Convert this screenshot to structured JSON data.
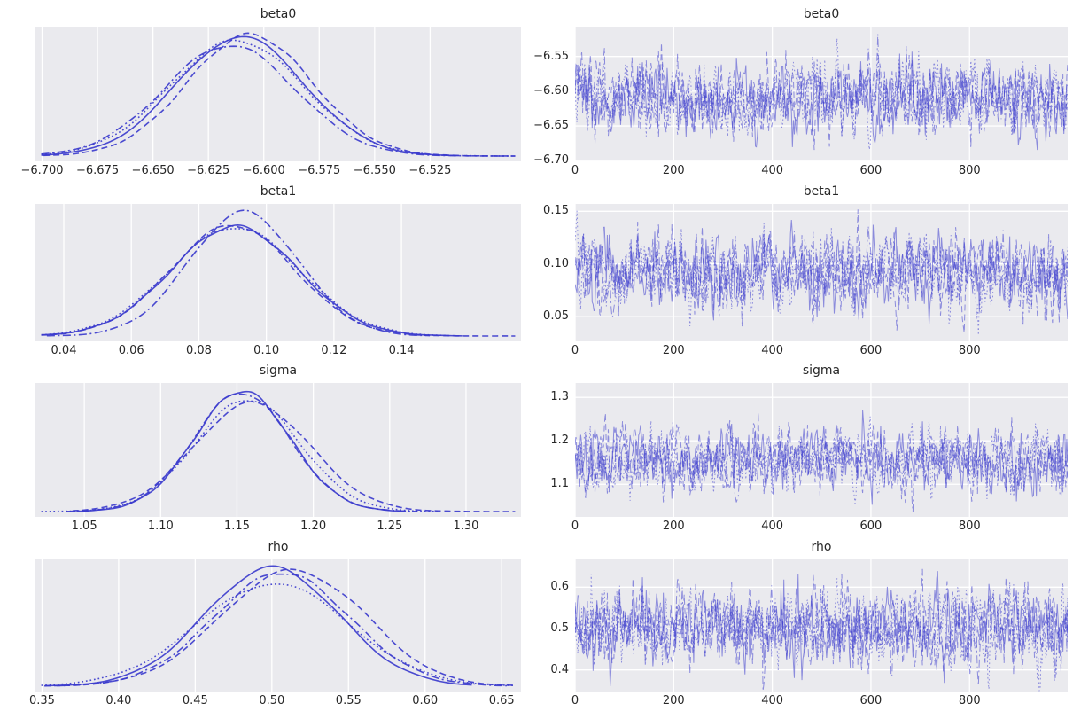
{
  "figure": {
    "background": "#ffffff",
    "axes_background": "#eaeaee",
    "grid_color": "#ffffff",
    "text_color": "#262626",
    "kde_line_color": "#3c3ccd",
    "trace_line_color": "#3c3ccd",
    "trace_opacity": 0.55,
    "chain_count": 4,
    "chain_linestyles": [
      "solid",
      "dashed",
      "dashdot",
      "dotted"
    ],
    "layout": "4 rows (beta0, beta1, sigma, rho) x 2 cols (posterior KDE, sample trace)"
  },
  "chart_data": [
    {
      "id": "beta0-kde",
      "title": "beta0",
      "type": "line",
      "subtype": "kde",
      "xlim": [
        -6.703,
        -6.484
      ],
      "xticks": [
        -6.7,
        -6.675,
        -6.65,
        -6.625,
        -6.6,
        -6.575,
        -6.55,
        -6.525
      ],
      "xtick_labels": [
        "−6.700",
        "−6.675",
        "−6.650",
        "−6.625",
        "−6.600",
        "−6.575",
        "−6.550",
        "−6.525"
      ],
      "series": [
        {
          "name": "chain-0",
          "style": "solid",
          "mu": -6.6105,
          "sd": 0.0288,
          "h": 1.0,
          "ext": [
            3.4,
            3.4
          ]
        },
        {
          "name": "chain-1",
          "style": "dashed",
          "mu": -6.6063,
          "sd": 0.0282,
          "h": 1.02,
          "ext": [
            3.3,
            5.2
          ]
        },
        {
          "name": "chain-2",
          "style": "dashdot",
          "mu": -6.6155,
          "sd": 0.0296,
          "h": 0.93,
          "ext": [
            4.1,
            4.6
          ]
        },
        {
          "name": "chain-3",
          "style": "dotted",
          "mu": -6.6122,
          "sd": 0.03,
          "h": 0.97,
          "ext": [
            3.7,
            4.4
          ]
        }
      ]
    },
    {
      "id": "beta0-trace",
      "title": "beta0",
      "type": "line",
      "subtype": "trace",
      "xlim": [
        0,
        999
      ],
      "xticks": [
        0,
        200,
        400,
        600,
        800
      ],
      "xtick_labels": [
        "0",
        "200",
        "400",
        "600",
        "800"
      ],
      "ylim": [
        -6.701,
        -6.507
      ],
      "yticks": [
        -6.55,
        -6.6,
        -6.65,
        -6.7
      ],
      "ytick_labels": [
        "−6.55",
        "−6.60",
        "−6.65",
        "−6.70"
      ],
      "series": [
        {
          "name": "chain-0",
          "style": "solid",
          "mean": -6.612,
          "sd": 0.0262
        },
        {
          "name": "chain-1",
          "style": "dashed",
          "mean": -6.61,
          "sd": 0.0262
        },
        {
          "name": "chain-2",
          "style": "dashdot",
          "mean": -6.6125,
          "sd": 0.0265
        },
        {
          "name": "chain-3",
          "style": "dotted",
          "mean": -6.611,
          "sd": 0.027
        }
      ]
    },
    {
      "id": "beta1-kde",
      "title": "beta1",
      "type": "line",
      "subtype": "kde",
      "xlim": [
        0.0316,
        0.1754
      ],
      "xticks": [
        0.04,
        0.06,
        0.08,
        0.1,
        0.12,
        0.14
      ],
      "xtick_labels": [
        "0.04",
        "0.06",
        "0.08",
        "0.10",
        "0.12",
        "0.14"
      ],
      "series": [
        {
          "name": "chain-0",
          "style": "solid",
          "mu": 0.0907,
          "sd": 0.0187,
          "h": 1.0,
          "ext": [
            3.3,
            3.6
          ]
        },
        {
          "name": "chain-1",
          "style": "dashed",
          "mu": 0.09,
          "sd": 0.0182,
          "h": 1.01,
          "ext": [
            3.4,
            5.4
          ]
        },
        {
          "name": "chain-2",
          "style": "dashdot",
          "mu": 0.0933,
          "sd": 0.0162,
          "h": 1.13,
          "ext": [
            3.6,
            3.4
          ]
        },
        {
          "name": "chain-3",
          "style": "dotted",
          "mu": 0.0906,
          "sd": 0.0192,
          "h": 0.99,
          "ext": [
            3.5,
            3.3
          ]
        }
      ]
    },
    {
      "id": "beta1-trace",
      "title": "beta1",
      "type": "line",
      "subtype": "trace",
      "xlim": [
        0,
        999
      ],
      "xticks": [
        0,
        200,
        400,
        600,
        800
      ],
      "xtick_labels": [
        "0",
        "200",
        "400",
        "600",
        "800"
      ],
      "ylim": [
        0.0265,
        0.157
      ],
      "yticks": [
        0.15,
        0.1,
        0.05
      ],
      "ytick_labels": [
        "0.15",
        "0.10",
        "0.05"
      ],
      "series": [
        {
          "name": "chain-0",
          "style": "solid",
          "mean": 0.0912,
          "sd": 0.0172
        },
        {
          "name": "chain-1",
          "style": "dashed",
          "mean": 0.0918,
          "sd": 0.017
        },
        {
          "name": "chain-2",
          "style": "dashdot",
          "mean": 0.0909,
          "sd": 0.0172
        },
        {
          "name": "chain-3",
          "style": "dotted",
          "mean": 0.0915,
          "sd": 0.0176
        }
      ]
    },
    {
      "id": "sigma-kde",
      "title": "sigma",
      "type": "line",
      "subtype": "kde",
      "xlim": [
        1.018,
        1.336
      ],
      "xticks": [
        1.05,
        1.1,
        1.15,
        1.2,
        1.25,
        1.3
      ],
      "xtick_labels": [
        "1.05",
        "1.10",
        "1.15",
        "1.20",
        "1.25",
        "1.30"
      ],
      "series": [
        {
          "name": "chain-0",
          "style": "solid",
          "mu": 1.1535,
          "sd": 0.0315,
          "h": 1.0,
          "ext": [
            3.4,
            3.4
          ]
        },
        {
          "name": "chain-1",
          "style": "dashed",
          "mu": 1.16,
          "sd": 0.038,
          "h": 0.9,
          "ext": [
            3.1,
            4.6
          ]
        },
        {
          "name": "chain-2",
          "style": "dashdot",
          "mu": 1.153,
          "sd": 0.032,
          "h": 0.985,
          "ext": [
            3.6,
            3.6
          ]
        },
        {
          "name": "chain-3",
          "style": "dotted",
          "mu": 1.157,
          "sd": 0.0345,
          "h": 0.93,
          "ext": [
            4.2,
            3.6
          ]
        }
      ]
    },
    {
      "id": "sigma-trace",
      "title": "sigma",
      "type": "line",
      "subtype": "trace",
      "xlim": [
        0,
        999
      ],
      "xticks": [
        0,
        200,
        400,
        600,
        800
      ],
      "xtick_labels": [
        "0",
        "200",
        "400",
        "600",
        "800"
      ],
      "ylim": [
        1.025,
        1.333
      ],
      "yticks": [
        1.3,
        1.2,
        1.1
      ],
      "ytick_labels": [
        "1.3",
        "1.2",
        "1.1"
      ],
      "series": [
        {
          "name": "chain-0",
          "style": "solid",
          "mean": 1.154,
          "sd": 0.0355
        },
        {
          "name": "chain-1",
          "style": "dashed",
          "mean": 1.158,
          "sd": 0.035
        },
        {
          "name": "chain-2",
          "style": "dashdot",
          "mean": 1.153,
          "sd": 0.0355
        },
        {
          "name": "chain-3",
          "style": "dotted",
          "mean": 1.156,
          "sd": 0.0365
        }
      ]
    },
    {
      "id": "rho-kde",
      "title": "rho",
      "type": "line",
      "subtype": "kde",
      "xlim": [
        0.3457,
        0.6626
      ],
      "xticks": [
        0.35,
        0.4,
        0.45,
        0.5,
        0.55,
        0.6,
        0.65
      ],
      "xtick_labels": [
        "0.35",
        "0.40",
        "0.45",
        "0.50",
        "0.55",
        "0.60",
        "0.65"
      ],
      "series": [
        {
          "name": "chain-0",
          "style": "solid",
          "mu": 0.5,
          "sd": 0.0435,
          "h": 1.0,
          "ext": [
            3.4,
            3.0
          ]
        },
        {
          "name": "chain-1",
          "style": "dashed",
          "mu": 0.5125,
          "sd": 0.046,
          "h": 0.97,
          "ext": [
            3.5,
            3.4
          ],
          "bump": [
            0.05,
            0.022,
            0.05
          ]
        },
        {
          "name": "chain-2",
          "style": "dashdot",
          "mu": 0.5065,
          "sd": 0.0445,
          "h": 0.955,
          "ext": [
            3.3,
            3.3
          ]
        },
        {
          "name": "chain-3",
          "style": "dotted",
          "mu": 0.501,
          "sd": 0.0495,
          "h": 0.865,
          "ext": [
            3.2,
            3.2
          ]
        }
      ]
    },
    {
      "id": "rho-trace",
      "title": "rho",
      "type": "line",
      "subtype": "trace",
      "xlim": [
        0,
        999
      ],
      "xticks": [
        0,
        200,
        400,
        600,
        800
      ],
      "xtick_labels": [
        "0",
        "200",
        "400",
        "600",
        "800"
      ],
      "ylim": [
        0.348,
        0.667
      ],
      "yticks": [
        0.6,
        0.5,
        0.4
      ],
      "ytick_labels": [
        "0.6",
        "0.5",
        "0.4"
      ],
      "series": [
        {
          "name": "chain-0",
          "style": "solid",
          "mean": 0.503,
          "sd": 0.046
        },
        {
          "name": "chain-1",
          "style": "dashed",
          "mean": 0.507,
          "sd": 0.0455
        },
        {
          "name": "chain-2",
          "style": "dashdot",
          "mean": 0.501,
          "sd": 0.046
        },
        {
          "name": "chain-3",
          "style": "dotted",
          "mean": 0.505,
          "sd": 0.047
        }
      ]
    }
  ]
}
